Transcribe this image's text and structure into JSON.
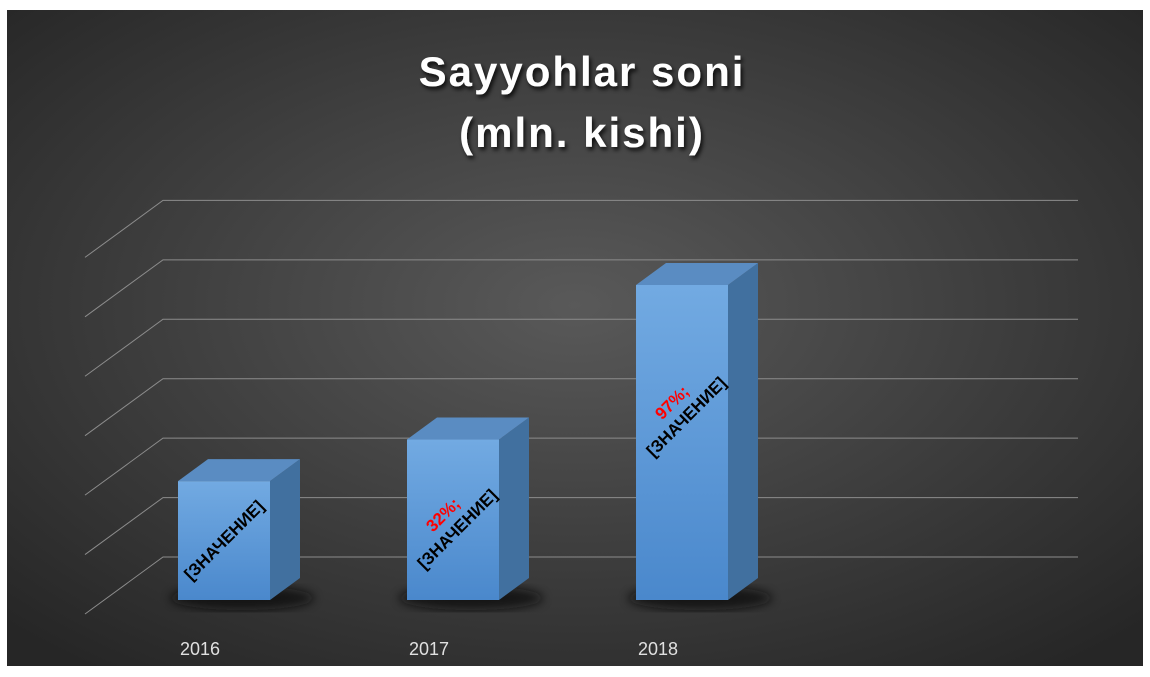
{
  "chart_data": {
    "type": "bar3d",
    "title": [
      "Sayyohlar soni",
      "(mln. kishi)"
    ],
    "categories": [
      "2016",
      "2017",
      "2018"
    ],
    "values": [
      2.0,
      2.7,
      5.3
    ],
    "label_prefixes": [
      null,
      "32%;",
      "97%;"
    ],
    "label_texts": [
      "[ЗНАЧЕНИЕ]",
      "[ЗНАЧЕНИЕ]",
      "[ЗНАЧЕНИЕ]"
    ],
    "color": "#5b9bd5",
    "ylim": [
      0,
      6
    ],
    "yticks": [
      0,
      1,
      2,
      3,
      4,
      5,
      6
    ],
    "grid": true
  }
}
